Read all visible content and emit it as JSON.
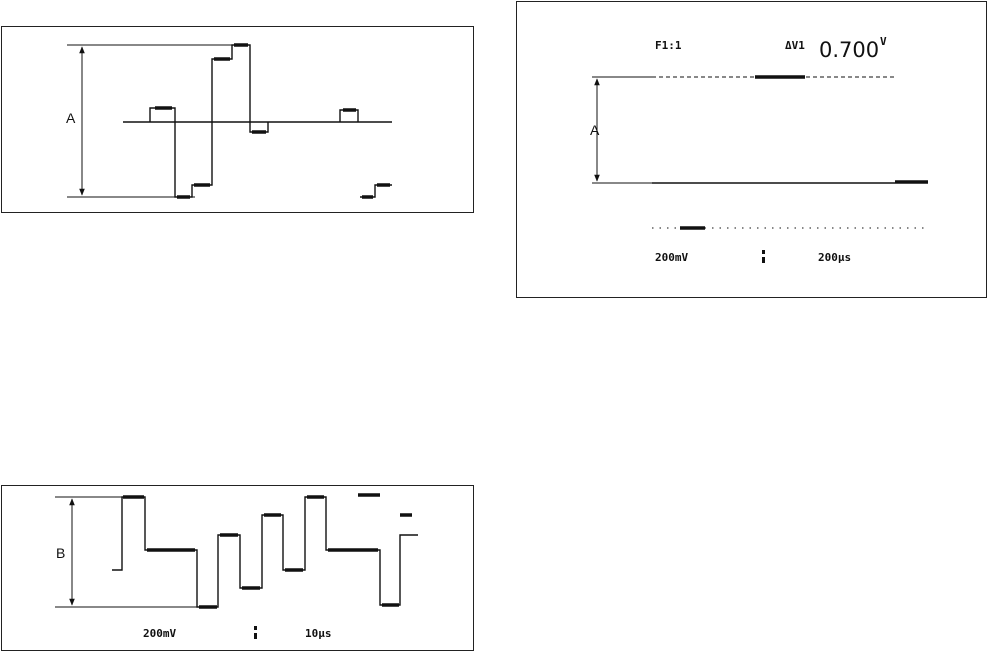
{
  "panels": [
    {
      "label": "A"
    },
    {
      "header": {
        "mode": "F1:1",
        "delta": "ΔV1",
        "reading": "0.700",
        "unit": "V"
      },
      "label": "A",
      "footer": {
        "volts": "200mV",
        "time": "200µs"
      }
    },
    {
      "label": "B",
      "footer": {
        "volts": "200mV",
        "time": "10µs"
      }
    }
  ]
}
